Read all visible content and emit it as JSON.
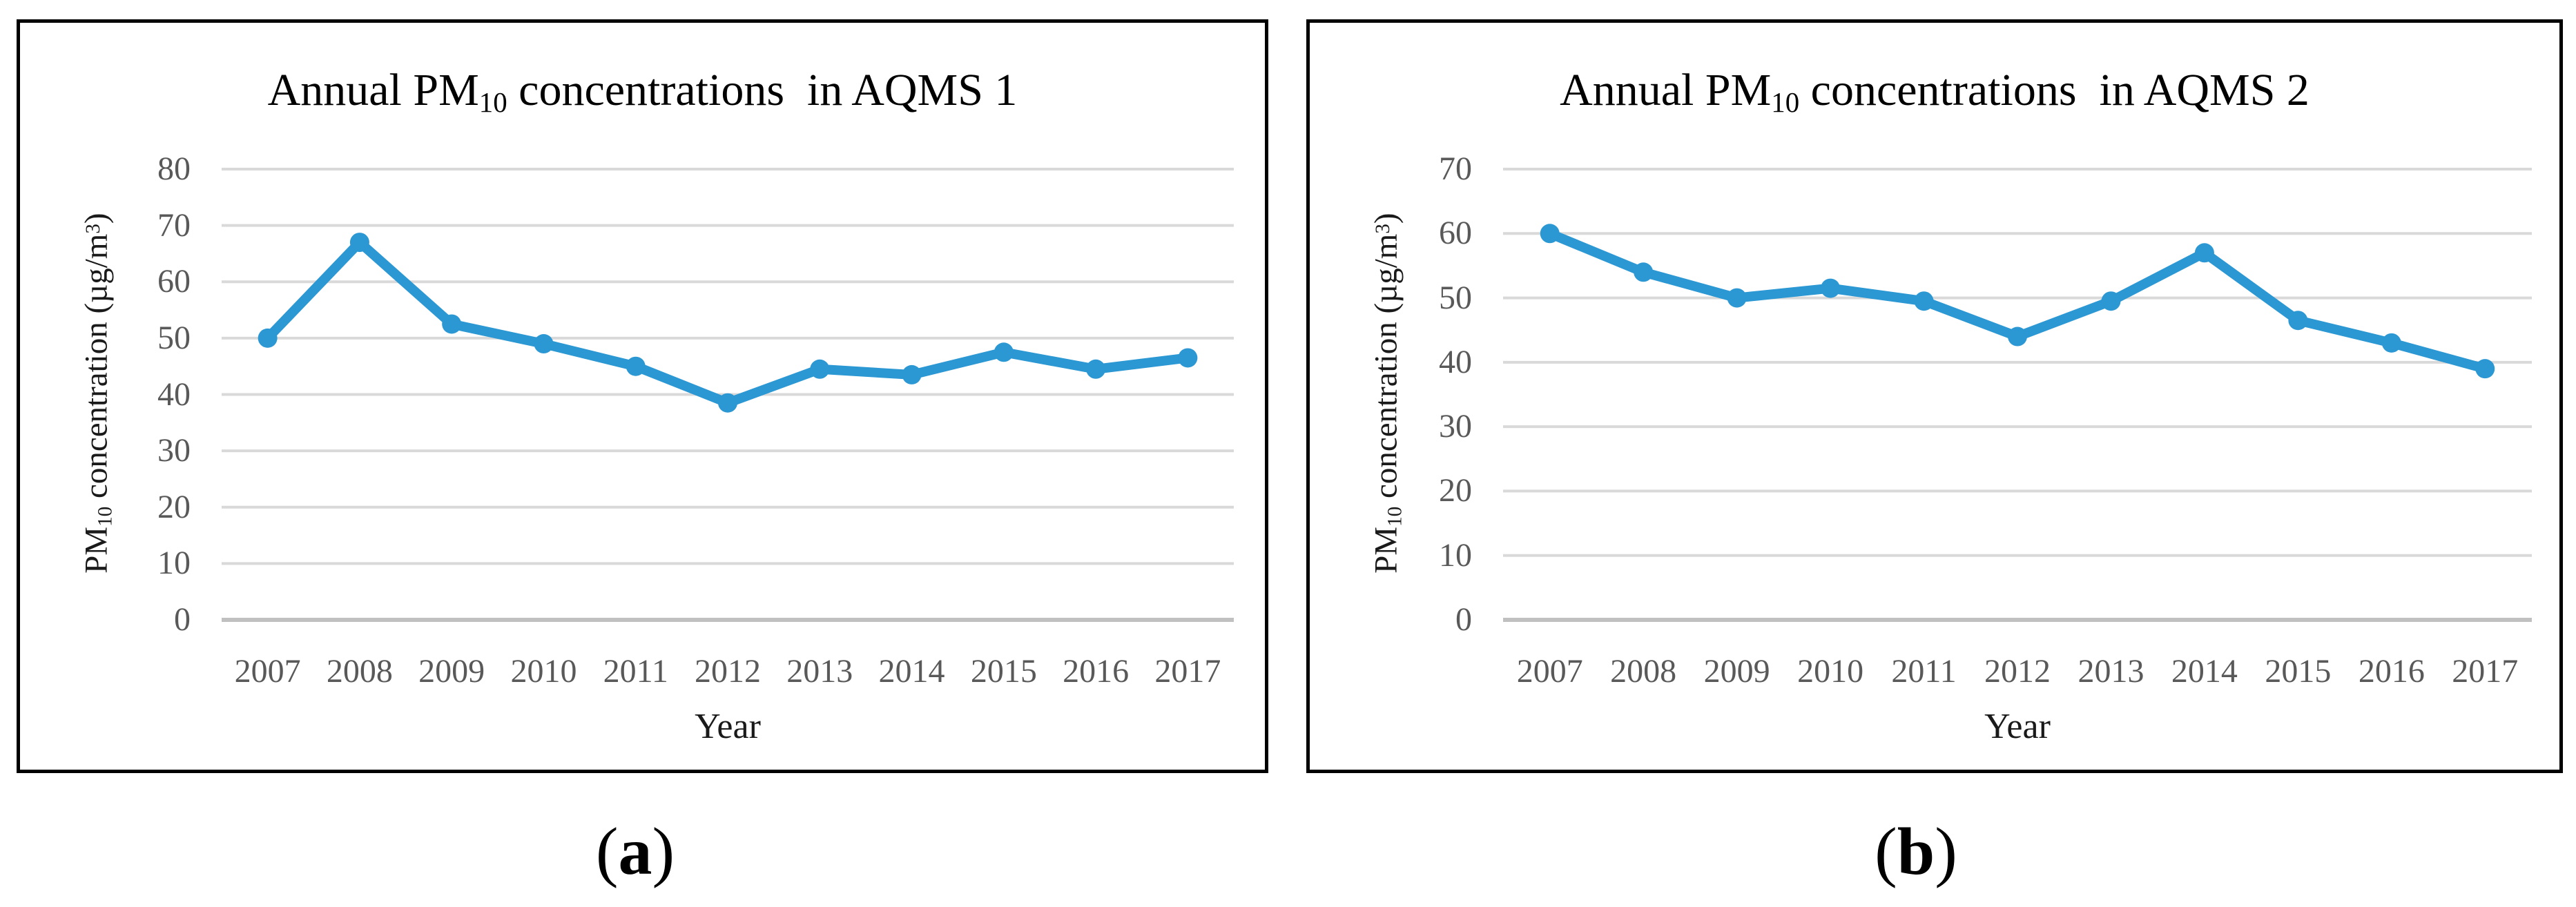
{
  "captions": {
    "a": {
      "open": "(",
      "letter": "a",
      "close": ")"
    },
    "b": {
      "open": "(",
      "letter": "b",
      "close": ")"
    }
  },
  "charts": [
    {
      "title_pre": "Annual PM",
      "title_sub": "10",
      "title_post": " concentrations  in AQMS 1",
      "y_title_pre": "PM",
      "y_title_sub": "10",
      "y_title_mid": " concentration (µg/m",
      "y_title_sup": "3",
      "y_title_end": ")",
      "x_title": "Year"
    },
    {
      "title_pre": "Annual PM",
      "title_sub": "10",
      "title_post": " concentrations  in AQMS 2",
      "y_title_pre": "PM",
      "y_title_sub": "10",
      "y_title_mid": " concentration (µg/m",
      "y_title_sup": "3",
      "y_title_end": ")",
      "x_title": "Year"
    }
  ],
  "chart_data": [
    {
      "type": "line",
      "title": "Annual PM10 concentrations in AQMS 1",
      "xlabel": "Year",
      "ylabel": "PM10 concentration (µg/m³)",
      "categories": [
        "2007",
        "2008",
        "2009",
        "2010",
        "2011",
        "2012",
        "2013",
        "2014",
        "2015",
        "2016",
        "2017"
      ],
      "values": [
        50,
        67,
        52.5,
        49,
        45,
        38.5,
        44.5,
        43.5,
        47.5,
        44.5,
        46.5
      ],
      "ylim": [
        0,
        80
      ],
      "yticks": [
        0,
        10,
        20,
        30,
        40,
        50,
        60,
        70,
        80
      ],
      "grid": true,
      "legend": false,
      "line_color": "#2B97D3",
      "marker": "circle",
      "gridline_color": "#D9D9D9",
      "axis_line_color": "#C0C0C0",
      "tick_label_color": "#595959"
    },
    {
      "type": "line",
      "title": "Annual PM10 concentrations in AQMS 2",
      "xlabel": "Year",
      "ylabel": "PM10 concentration (µg/m³)",
      "categories": [
        "2007",
        "2008",
        "2009",
        "2010",
        "2011",
        "2012",
        "2013",
        "2014",
        "2015",
        "2016",
        "2017"
      ],
      "values": [
        60,
        54,
        50,
        51.5,
        49.5,
        44,
        49.5,
        57,
        46.5,
        43,
        39
      ],
      "ylim": [
        0,
        70
      ],
      "yticks": [
        0,
        10,
        20,
        30,
        40,
        50,
        60,
        70
      ],
      "grid": true,
      "legend": false,
      "line_color": "#2B97D3",
      "marker": "circle",
      "gridline_color": "#D9D9D9",
      "axis_line_color": "#C0C0C0",
      "tick_label_color": "#595959"
    }
  ]
}
